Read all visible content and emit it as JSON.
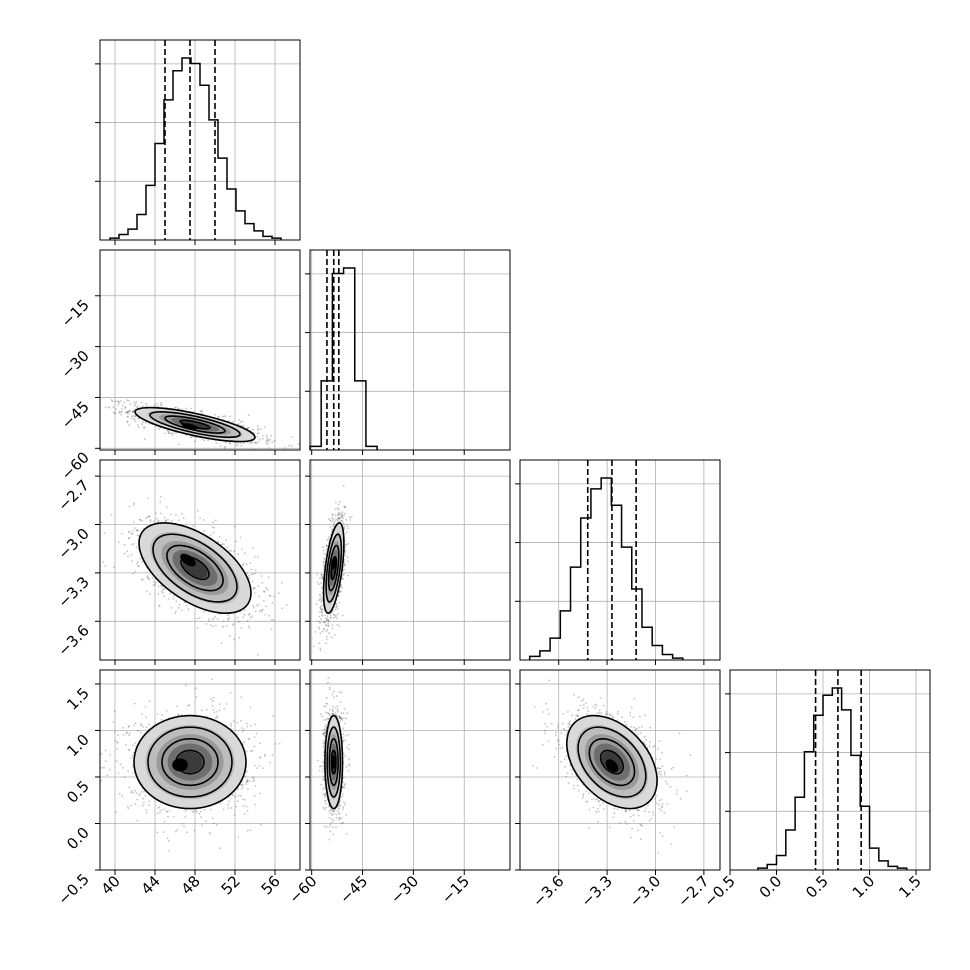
{
  "chart_data": {
    "type": "corner",
    "grid": true,
    "axis_labels": [
      "",
      "",
      "",
      ""
    ],
    "parameters": [
      {
        "range": [
          38.5,
          58.5
        ],
        "ticks": [
          40,
          44,
          48,
          52,
          56
        ],
        "tick_labels": [
          "40",
          "44",
          "48",
          "52",
          "56"
        ],
        "quantiles": [
          45.0,
          47.5,
          50.0
        ],
        "hist": {
          "bin_start": 39.5,
          "bin_width": 0.9,
          "counts": [
            0.01,
            0.03,
            0.06,
            0.14,
            0.3,
            0.53,
            0.77,
            0.93,
            1.0,
            0.97,
            0.85,
            0.66,
            0.45,
            0.28,
            0.16,
            0.09,
            0.05,
            0.02,
            0.01
          ]
        }
      },
      {
        "range": [
          -60.5,
          -1.5
        ],
        "ticks": [
          -60,
          -45,
          -30,
          -15
        ],
        "tick_labels": [
          "−60",
          "−45",
          "−30",
          "−15"
        ],
        "quantiles": [
          -55.5,
          -53.5,
          -52.0
        ],
        "hist": {
          "bin_start": -60.5,
          "bin_width": 3.3,
          "counts": [
            0.02,
            0.38,
            0.97,
            1.0,
            0.38,
            0.02
          ]
        }
      },
      {
        "range": [
          -3.84,
          -2.6
        ],
        "ticks": [
          -3.6,
          -3.3,
          -3.0,
          -2.7
        ],
        "tick_labels": [
          "−3.6",
          "−3.3",
          "−3.0",
          "−2.7"
        ],
        "quantiles": [
          -3.42,
          -3.27,
          -3.12
        ],
        "hist": {
          "bin_start": -3.78,
          "bin_width": 0.0633,
          "counts": [
            0.02,
            0.05,
            0.12,
            0.27,
            0.51,
            0.78,
            0.94,
            1.0,
            0.85,
            0.62,
            0.39,
            0.18,
            0.08,
            0.03,
            0.01
          ]
        }
      },
      {
        "range": [
          -0.5,
          1.65
        ],
        "ticks": [
          -0.5,
          0.0,
          0.5,
          1.0,
          1.5
        ],
        "tick_labels": [
          "−0.5",
          "0.0",
          "0.5",
          "1.0",
          "1.5"
        ],
        "quantiles": [
          0.42,
          0.66,
          0.91
        ],
        "hist": {
          "bin_start": -0.2,
          "bin_width": 0.1,
          "counts": [
            0.01,
            0.03,
            0.08,
            0.22,
            0.4,
            0.65,
            0.85,
            0.96,
            1.0,
            0.88,
            0.63,
            0.35,
            0.12,
            0.05,
            0.02,
            0.01
          ]
        }
      }
    ],
    "pair_panels": [
      {
        "row": 1,
        "col": 0,
        "mean": [
          48,
          -53
        ],
        "sd": [
          3.0,
          2.5
        ],
        "rho": -0.75,
        "peak": [
          47.5,
          -53.5
        ]
      },
      {
        "row": 2,
        "col": 0,
        "mean": [
          48,
          -3.27
        ],
        "sd": [
          2.8,
          0.14
        ],
        "rho": -0.55,
        "peak": [
          47.3,
          -3.22
        ]
      },
      {
        "row": 2,
        "col": 1,
        "mean": [
          -53.5,
          -3.27
        ],
        "sd": [
          1.5,
          0.14
        ],
        "rho": 0.55,
        "peak": [
          -53.5,
          -3.24
        ]
      },
      {
        "row": 3,
        "col": 0,
        "mean": [
          47.5,
          0.66
        ],
        "sd": [
          2.8,
          0.25
        ],
        "rho": 0.0,
        "peak": [
          46.5,
          0.63
        ]
      },
      {
        "row": 3,
        "col": 1,
        "mean": [
          -53.5,
          0.66
        ],
        "sd": [
          1.3,
          0.25
        ],
        "rho": 0.0,
        "peak": [
          -53.5,
          0.66
        ]
      },
      {
        "row": 3,
        "col": 2,
        "mean": [
          -3.27,
          0.66
        ],
        "sd": [
          0.14,
          0.25
        ],
        "rho": -0.4,
        "peak": [
          -3.27,
          0.62
        ]
      }
    ]
  }
}
